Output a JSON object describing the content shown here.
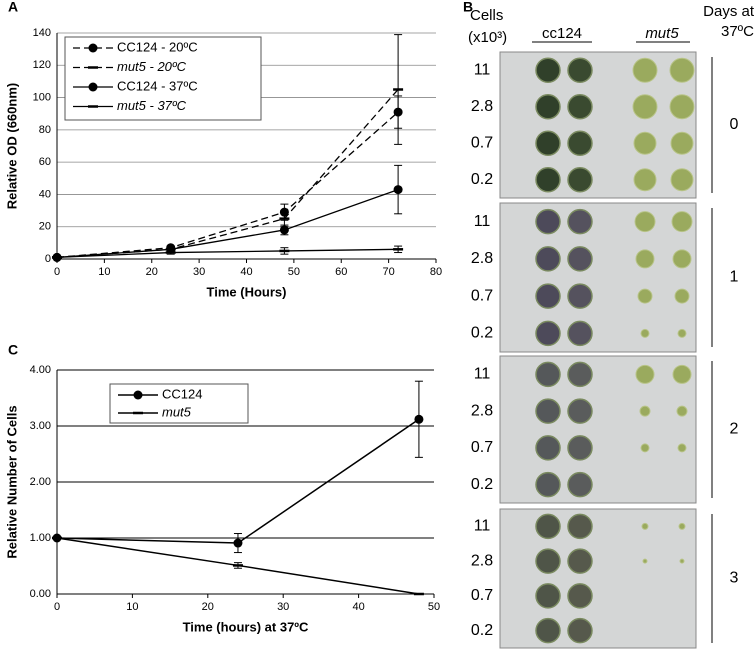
{
  "chart_data": [
    {
      "type": "line",
      "panel": "A",
      "xlabel": "Time (Hours)",
      "ylabel": "Relative OD (660nm)",
      "x": [
        0,
        24,
        48,
        72
      ],
      "xlim": [
        0,
        80
      ],
      "xticks": [
        0,
        10,
        20,
        30,
        40,
        50,
        60,
        70,
        80
      ],
      "ylim": [
        0,
        140
      ],
      "yticks": [
        0,
        20,
        40,
        60,
        80,
        100,
        120,
        140
      ],
      "grid": true,
      "series": [
        {
          "name": "CC124 - 20ºC",
          "color": "#000000",
          "dashed": true,
          "marker": "circle",
          "italic": false,
          "values": [
            1,
            7,
            29,
            91
          ],
          "errors": [
            0,
            1,
            5,
            10
          ]
        },
        {
          "name": "mut5 - 20ºC",
          "color": "#000000",
          "dashed": true,
          "marker": "dash",
          "italic": true,
          "values": [
            1,
            6,
            25,
            105
          ],
          "errors": [
            0,
            1,
            5,
            34
          ]
        },
        {
          "name": "CC124 - 37ºC",
          "color": "#000000",
          "dashed": false,
          "marker": "circle",
          "italic": false,
          "values": [
            1,
            6,
            18,
            43
          ],
          "errors": [
            0,
            1,
            3,
            15
          ]
        },
        {
          "name": "mut5 - 37ºC",
          "color": "#000000",
          "dashed": false,
          "marker": "dash",
          "italic": true,
          "values": [
            1,
            4,
            5,
            6
          ],
          "errors": [
            0,
            1,
            2,
            2
          ]
        }
      ]
    },
    {
      "type": "line",
      "panel": "C",
      "xlabel": "Time (hours) at 37ºC",
      "ylabel": "Relative Number of Cells",
      "x": [
        0,
        24,
        48
      ],
      "xlim": [
        0,
        50
      ],
      "xticks": [
        0,
        10,
        20,
        30,
        40,
        50
      ],
      "ylim": [
        0,
        4
      ],
      "yticks": [
        {
          "value": 0,
          "label": "0.00"
        },
        {
          "value": 1,
          "label": "1.00"
        },
        {
          "value": 2,
          "label": "2.00"
        },
        {
          "value": 3,
          "label": "3.00"
        },
        {
          "value": 4,
          "label": "4.00"
        }
      ],
      "grid": true,
      "series": [
        {
          "name": "CC124",
          "color": "#000000",
          "dashed": false,
          "marker": "circle",
          "italic": false,
          "values": [
            1,
            0.91,
            3.12
          ],
          "errors": [
            0,
            0.17,
            0.68
          ]
        },
        {
          "name": "mut5",
          "color": "#000000",
          "dashed": false,
          "marker": "dash",
          "italic": true,
          "values": [
            1,
            0.51,
            0
          ],
          "errors": [
            0,
            0.05,
            0
          ]
        }
      ]
    }
  ],
  "plates": {
    "panel": "B",
    "cells": "Cells",
    "unit": "(x10³)",
    "strains": [
      "cc124",
      "mut5"
    ],
    "days_title": [
      "Days at",
      "37ºC"
    ],
    "dilutions": [
      "11",
      "2.8",
      "0.7",
      "0.2"
    ],
    "days": [
      "0",
      "1",
      "2",
      "3"
    ]
  }
}
